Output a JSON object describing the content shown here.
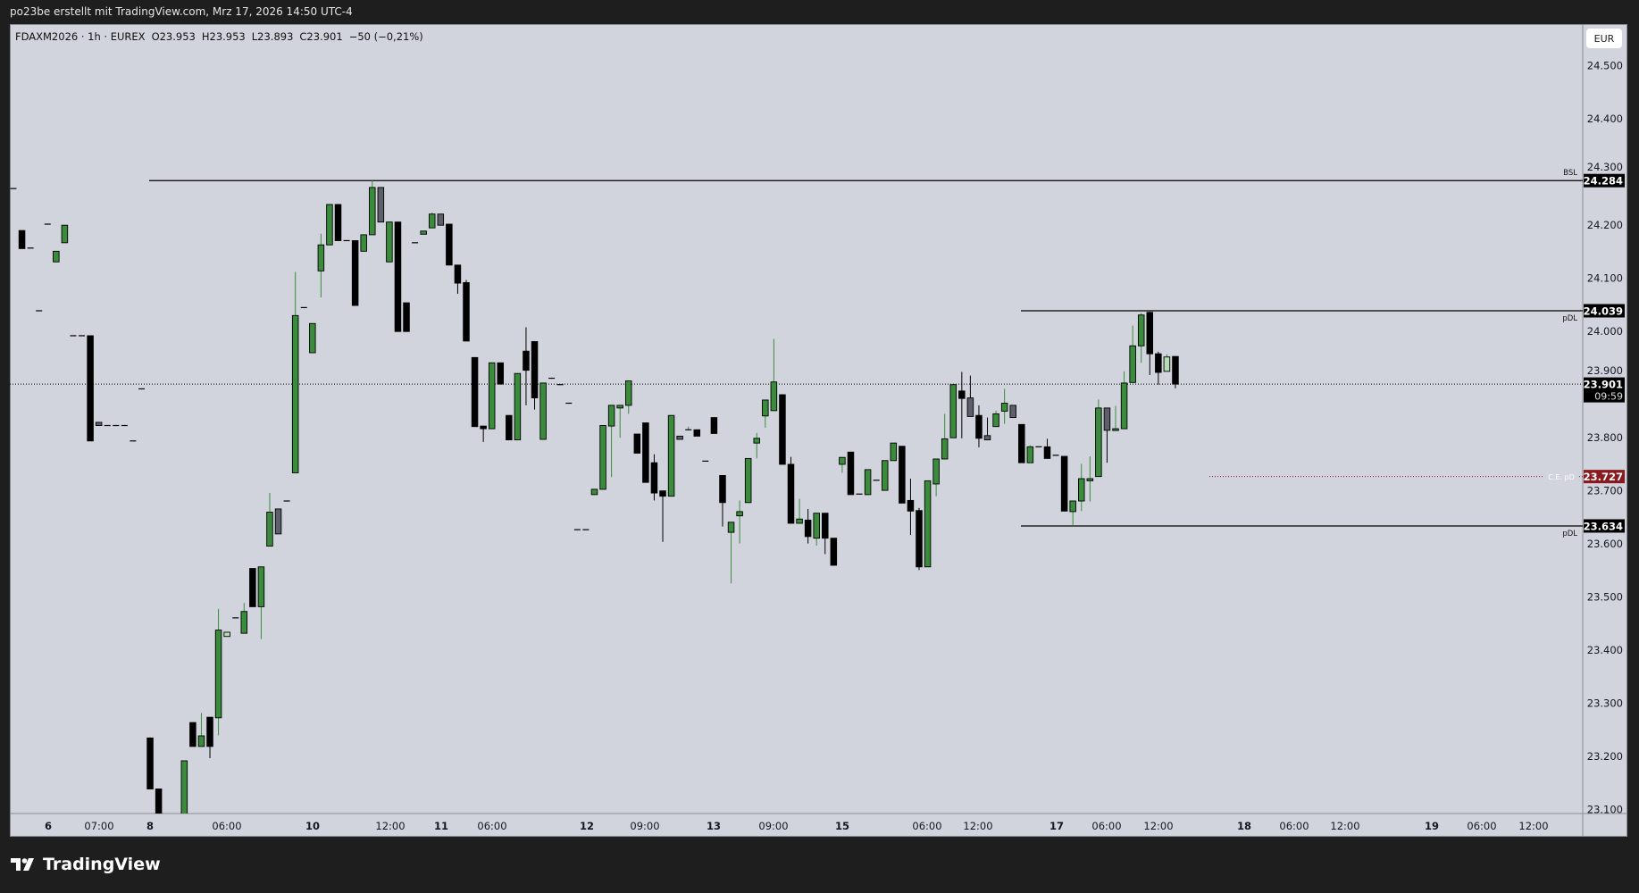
{
  "header": {
    "attribution": "po23be erstellt mit TradingView.com, Mrz 17, 2026 14:50 UTC-4"
  },
  "legend": {
    "symbol": "FDAXM2026 · 1h · EUREX",
    "open": "O23.953",
    "high": "H23.953",
    "low": "L23.893",
    "close": "C23.901",
    "change": "−50 (−0,21%)"
  },
  "currency_button": "EUR",
  "footer": {
    "brand": "TradingView"
  },
  "colors": {
    "up": "#3a8b3c",
    "down": "#000000",
    "neutral": "#5d606b",
    "light_up": "#b5dfb3",
    "background": "#d1d4dc",
    "ce_line": "#8b1a1f"
  },
  "chart_data": {
    "type": "candlestick",
    "title": "",
    "interval": "1h",
    "ylim": [
      23.1,
      24.55
    ],
    "grid": false,
    "y_ticks": [
      "24.500",
      "24.400",
      "24.300",
      "24.200",
      "24.100",
      "24.000",
      "23.900",
      "23.800",
      "23.700",
      "23.600",
      "23.500",
      "23.400",
      "23.300",
      "23.200",
      "23.100"
    ],
    "x_ticks": [
      {
        "label": "6",
        "day": true
      },
      {
        "label": "07:00",
        "day": false
      },
      {
        "label": "8",
        "day": true
      },
      {
        "label": "06:00",
        "day": false
      },
      {
        "label": "10",
        "day": true
      },
      {
        "label": "12:00",
        "day": false
      },
      {
        "label": "11",
        "day": true
      },
      {
        "label": "06:00",
        "day": false
      },
      {
        "label": "12",
        "day": true
      },
      {
        "label": "09:00",
        "day": false
      },
      {
        "label": "13",
        "day": true
      },
      {
        "label": "09:00",
        "day": false
      },
      {
        "label": "15",
        "day": true
      },
      {
        "label": "06:00",
        "day": false
      },
      {
        "label": "12:00",
        "day": false
      },
      {
        "label": "17",
        "day": true
      },
      {
        "label": "06:00",
        "day": false
      },
      {
        "label": "12:00",
        "day": false
      },
      {
        "label": "18",
        "day": true
      },
      {
        "label": "06:00",
        "day": false
      },
      {
        "label": "12:00",
        "day": false
      },
      {
        "label": "19",
        "day": true
      },
      {
        "label": "06:00",
        "day": false
      },
      {
        "label": "12:00",
        "day": false
      }
    ],
    "candles_ohlc": [
      [
        24.269,
        24.269,
        24.269,
        24.269
      ],
      [
        24.19,
        24.19,
        24.156,
        24.156
      ],
      [
        24.157,
        24.157,
        24.157,
        24.157
      ],
      [
        24.039,
        24.039,
        24.039,
        24.039
      ],
      [
        24.202,
        24.202,
        24.202,
        24.202
      ],
      [
        24.131,
        24.151,
        24.131,
        24.151
      ],
      [
        24.167,
        24.2,
        24.167,
        24.2
      ],
      [
        23.992,
        23.992,
        23.992,
        23.992
      ],
      [
        23.992,
        23.992,
        23.992,
        23.992
      ],
      [
        23.992,
        23.992,
        23.794,
        23.794
      ],
      [
        23.829,
        23.829,
        23.823,
        23.823,
        "neutral"
      ],
      [
        23.823,
        23.823,
        23.823,
        23.823
      ],
      [
        23.823,
        23.823,
        23.823,
        23.823
      ],
      [
        23.823,
        23.823,
        23.823,
        23.823
      ],
      [
        23.794,
        23.794,
        23.794,
        23.794
      ],
      [
        23.892,
        23.892,
        23.892,
        23.892
      ],
      [
        23.235,
        23.235,
        23.139,
        23.139
      ],
      [
        23.139,
        23.139,
        23.08,
        23.08
      ],
      null,
      null,
      [
        23.06,
        23.192,
        23.06,
        23.192
      ],
      [
        23.264,
        23.264,
        23.219,
        23.219
      ],
      [
        23.219,
        23.282,
        23.219,
        23.239
      ],
      [
        23.274,
        23.274,
        23.197,
        23.219
      ],
      [
        23.273,
        23.478,
        23.24,
        23.438
      ],
      [
        23.426,
        23.434,
        23.426,
        23.434,
        "light_up"
      ],
      [
        23.461,
        23.461,
        23.461,
        23.461
      ],
      [
        23.432,
        23.489,
        23.432,
        23.473
      ],
      [
        23.554,
        23.554,
        23.482,
        23.482
      ],
      [
        23.482,
        23.557,
        23.421,
        23.557
      ],
      [
        23.596,
        23.696,
        23.596,
        23.66
      ],
      [
        23.666,
        23.666,
        23.619,
        23.619,
        "neutral"
      ],
      [
        23.681,
        23.681,
        23.681,
        23.681
      ],
      [
        23.734,
        24.112,
        23.734,
        24.03
      ],
      [
        24.045,
        24.045,
        24.045,
        24.045
      ],
      [
        23.96,
        24.015,
        23.96,
        24.015
      ],
      [
        24.114,
        24.184,
        24.064,
        24.163
      ],
      [
        24.163,
        24.239,
        24.163,
        24.239
      ],
      [
        24.239,
        24.239,
        24.171,
        24.171
      ],
      [
        24.171,
        24.171,
        24.171,
        24.171
      ],
      [
        24.171,
        24.171,
        24.049,
        24.049
      ],
      [
        24.151,
        24.182,
        24.151,
        24.182
      ],
      [
        24.182,
        24.284,
        24.182,
        24.271
      ],
      [
        24.271,
        24.271,
        24.206,
        24.206,
        "neutral"
      ],
      [
        24.131,
        24.206,
        24.131,
        24.206
      ],
      [
        24.206,
        24.206,
        24.0,
        24.0
      ],
      [
        24.054,
        24.054,
        24.0,
        24.0
      ],
      [
        24.167,
        24.167,
        24.167,
        24.167
      ],
      [
        24.183,
        24.189,
        24.183,
        24.189
      ],
      [
        24.195,
        24.224,
        24.195,
        24.221
      ],
      [
        24.221,
        24.221,
        24.2,
        24.2,
        "neutral"
      ],
      [
        24.202,
        24.202,
        24.125,
        24.125
      ],
      [
        24.125,
        24.125,
        24.071,
        24.091
      ],
      [
        24.092,
        24.097,
        23.982,
        23.982
      ],
      [
        23.951,
        23.951,
        23.821,
        23.821
      ],
      [
        23.822,
        23.822,
        23.792,
        23.817
      ],
      [
        23.817,
        23.941,
        23.817,
        23.941
      ],
      [
        23.941,
        23.941,
        23.901,
        23.901
      ],
      [
        23.842,
        23.842,
        23.796,
        23.796
      ],
      [
        23.796,
        23.921,
        23.796,
        23.921
      ],
      [
        23.963,
        24.008,
        23.861,
        23.927
      ],
      [
        23.981,
        23.981,
        23.853,
        23.875
      ],
      [
        23.797,
        23.903,
        23.797,
        23.903
      ],
      [
        23.912,
        23.912,
        23.912,
        23.912
      ],
      [
        23.9,
        23.9,
        23.9,
        23.9
      ],
      [
        23.865,
        23.865,
        23.865,
        23.865
      ],
      [
        23.627,
        23.627,
        23.627,
        23.627
      ],
      [
        23.627,
        23.627,
        23.627,
        23.627
      ],
      [
        23.693,
        23.703,
        23.693,
        23.703
      ],
      [
        23.703,
        23.823,
        23.703,
        23.823
      ],
      [
        23.822,
        23.861,
        23.726,
        23.861
      ],
      [
        23.856,
        23.861,
        23.8,
        23.861
      ],
      [
        23.861,
        23.907,
        23.845,
        23.907
      ],
      [
        23.807,
        23.807,
        23.771,
        23.771
      ],
      [
        23.828,
        23.828,
        23.716,
        23.716
      ],
      [
        23.753,
        23.769,
        23.682,
        23.696
      ],
      [
        23.7,
        23.7,
        23.604,
        23.69
      ],
      [
        23.69,
        23.842,
        23.69,
        23.842
      ],
      [
        23.803,
        23.803,
        23.797,
        23.797,
        "neutral"
      ],
      [
        23.815,
        23.821,
        23.815,
        23.815
      ],
      [
        23.815,
        23.815,
        23.803,
        23.803
      ],
      [
        23.756,
        23.756,
        23.756,
        23.756
      ],
      [
        23.838,
        23.838,
        23.808,
        23.808
      ],
      [
        23.729,
        23.729,
        23.633,
        23.678
      ],
      [
        23.622,
        23.641,
        23.526,
        23.641
      ],
      [
        23.653,
        23.682,
        23.601,
        23.661
      ],
      [
        23.678,
        23.761,
        23.678,
        23.761
      ],
      [
        23.79,
        23.809,
        23.761,
        23.799
      ],
      [
        23.841,
        23.871,
        23.819,
        23.871
      ],
      [
        23.851,
        23.986,
        23.851,
        23.905
      ],
      [
        23.881,
        23.881,
        23.75,
        23.75
      ],
      [
        23.75,
        23.764,
        23.639,
        23.639
      ],
      [
        23.639,
        23.685,
        23.639,
        23.647
      ],
      [
        23.645,
        23.666,
        23.601,
        23.614
      ],
      [
        23.611,
        23.658,
        23.597,
        23.658
      ],
      [
        23.658,
        23.658,
        23.581,
        23.611
      ],
      [
        23.611,
        23.611,
        23.56,
        23.56
      ],
      [
        23.75,
        23.763,
        23.734,
        23.763
      ],
      [
        23.773,
        23.773,
        23.693,
        23.693
      ],
      [
        23.694,
        23.694,
        23.694,
        23.694
      ],
      [
        23.693,
        23.74,
        23.693,
        23.74
      ],
      [
        23.72,
        23.72,
        23.72,
        23.72
      ],
      [
        23.701,
        23.757,
        23.701,
        23.757
      ],
      [
        23.757,
        23.79,
        23.757,
        23.79
      ],
      [
        23.784,
        23.784,
        23.677,
        23.677
      ],
      [
        23.682,
        23.723,
        23.617,
        23.662
      ],
      [
        23.663,
        23.668,
        23.551,
        23.557
      ],
      [
        23.557,
        23.719,
        23.557,
        23.719
      ],
      [
        23.713,
        23.761,
        23.69,
        23.76
      ],
      [
        23.76,
        23.845,
        23.76,
        23.798
      ],
      [
        23.8,
        23.9,
        23.8,
        23.9
      ],
      [
        23.888,
        23.924,
        23.799,
        23.874
      ],
      [
        23.875,
        23.917,
        23.84,
        23.84,
        "neutral"
      ],
      [
        23.842,
        23.861,
        23.782,
        23.799
      ],
      [
        23.804,
        23.838,
        23.796,
        23.796,
        "neutral"
      ],
      [
        23.821,
        23.851,
        23.821,
        23.845
      ],
      [
        23.85,
        23.892,
        23.826,
        23.865
      ],
      [
        23.861,
        23.861,
        23.838,
        23.838,
        "neutral"
      ],
      [
        23.825,
        23.825,
        23.753,
        23.753
      ],
      [
        23.753,
        23.786,
        23.753,
        23.783
      ],
      [
        23.783,
        23.783,
        23.783,
        23.783
      ],
      [
        23.783,
        23.798,
        23.761,
        23.761
      ],
      [
        23.767,
        23.767,
        23.767,
        23.767
      ],
      [
        23.765,
        23.765,
        23.662,
        23.662
      ],
      [
        23.661,
        23.681,
        23.634,
        23.681
      ],
      [
        23.681,
        23.751,
        23.662,
        23.723
      ],
      [
        23.719,
        23.765,
        23.68,
        23.723
      ],
      [
        23.727,
        23.872,
        23.727,
        23.856
      ],
      [
        23.856,
        23.856,
        23.753,
        23.814,
        "neutral"
      ],
      [
        23.814,
        23.86,
        23.814,
        23.817
      ],
      [
        23.817,
        23.925,
        23.817,
        23.903
      ],
      [
        23.904,
        24.011,
        23.904,
        23.973
      ],
      [
        23.973,
        24.035,
        23.941,
        24.031
      ],
      [
        24.036,
        24.037,
        23.918,
        23.958
      ],
      [
        23.958,
        23.962,
        23.9,
        23.923
      ],
      [
        23.925,
        23.957,
        23.925,
        23.952,
        "light_up"
      ],
      [
        23.953,
        23.953,
        23.893,
        23.901
      ]
    ],
    "levels": [
      {
        "label": "BSL",
        "price": 24.284,
        "tag": "24.284",
        "style": "solid"
      },
      {
        "label": "pDL",
        "price": 24.039,
        "tag": "24.039",
        "style": "solid"
      },
      {
        "label": "C.E. pD",
        "price": 23.727,
        "tag": "23.727",
        "style": "dotted-red"
      },
      {
        "label": "pDL",
        "price": 23.634,
        "tag": "23.634",
        "style": "solid"
      }
    ],
    "last_price": {
      "price": 23.901,
      "tag": "23.901",
      "countdown": "09:59"
    }
  }
}
